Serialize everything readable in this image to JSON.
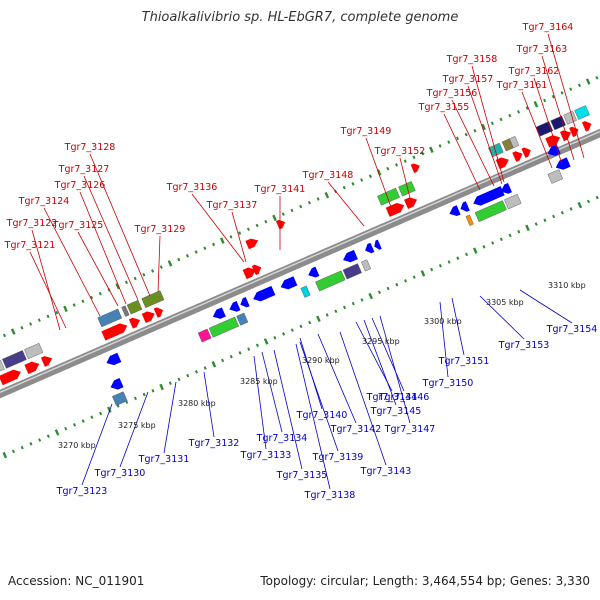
{
  "title": "Thioalkalivibrio sp. HL-EbGR7, complete genome",
  "footer": {
    "accession": "Accession: NC_011901",
    "summary": "Topology: circular; Length: 3,464,554 bp; Genes: 3,330"
  },
  "colors": {
    "backbone": "#8c8c8c",
    "top_label": "#cc0000",
    "bottom_label": "#0000cc",
    "top_strand_gene": "#ff0000",
    "bottom_strand_gene": "#0000ff",
    "scale_dot": "#2e8b2e"
  },
  "scale_labels": [
    "3270 kbp",
    "3275 kbp",
    "3280 kbp",
    "3285 kbp",
    "3290 kbp",
    "3295 kbp",
    "3300 kbp",
    "3305 kbp",
    "3310 kbp"
  ],
  "top_genes": [
    "Tgr7_3121",
    "Tgr7_3122",
    "Tgr7_3124",
    "Tgr7_3125",
    "Tgr7_3126",
    "Tgr7_3127",
    "Tgr7_3128",
    "Tgr7_3129",
    "Tgr7_3136",
    "Tgr7_3137",
    "Tgr7_3141",
    "Tgr7_3148",
    "Tgr7_3149",
    "Tgr7_3152",
    "Tgr7_3155",
    "Tgr7_3156",
    "Tgr7_3157",
    "Tgr7_3158",
    "Tgr7_3161",
    "Tgr7_3162",
    "Tgr7_3163",
    "Tgr7_3164"
  ],
  "bottom_genes": [
    "Tgr7_3123",
    "Tgr7_3130",
    "Tgr7_3131",
    "Tgr7_3132",
    "Tgr7_3133",
    "Tgr7_3134",
    "Tgr7_3135",
    "Tgr7_3138",
    "Tgr7_3139",
    "Tgr7_3140",
    "Tgr7_3142",
    "Tgr7_3143",
    "Tgr7_3144",
    "Tgr7_3145",
    "Tgr7_3146",
    "Tgr7_3147",
    "Tgr7_3150",
    "Tgr7_3151",
    "Tgr7_3153",
    "Tgr7_3154"
  ]
}
